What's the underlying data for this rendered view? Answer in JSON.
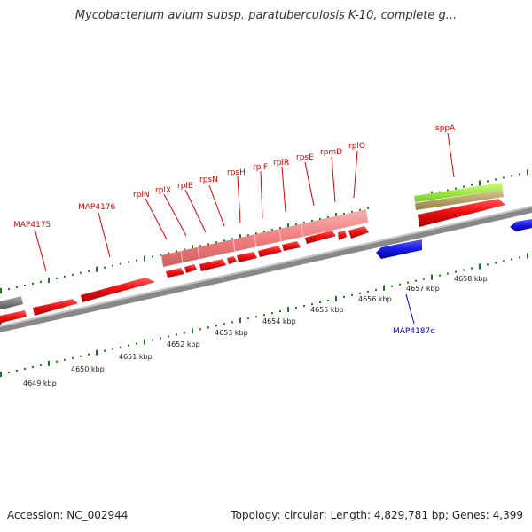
{
  "title": "Mycobacterium avium subsp. paratuberculosis K-10, complete g...",
  "footer": {
    "accession": "Accession: NC_002944",
    "summary": "Topology: circular; Length: 4,829,781 bp; Genes: 4,399"
  },
  "colors": {
    "gene_forward": "#ee1111",
    "gene_operon": "#f08080",
    "gene_reverse": "#1a1ae6",
    "gene_gray": "#808080",
    "feature_green": "#99ee33",
    "feature_olive": "#b3a15c",
    "backbone": "#888888",
    "tick": "#1a7a1a",
    "label_forward": "#dd0000",
    "label_reverse": "#0000cc"
  },
  "gene_labels": [
    {
      "id": "map4175",
      "text": "MAP4175"
    },
    {
      "id": "map4176",
      "text": "MAP4176"
    },
    {
      "id": "rpln",
      "text": "rplN"
    },
    {
      "id": "rplx",
      "text": "rplX"
    },
    {
      "id": "rple",
      "text": "rplE"
    },
    {
      "id": "rpsn",
      "text": "rpsN"
    },
    {
      "id": "rpsh",
      "text": "rpsH"
    },
    {
      "id": "rplf",
      "text": "rplF"
    },
    {
      "id": "rplr",
      "text": "rplR"
    },
    {
      "id": "rpse",
      "text": "rpsE"
    },
    {
      "id": "rpmd",
      "text": "rpmD"
    },
    {
      "id": "rplo",
      "text": "rplO"
    },
    {
      "id": "sppa",
      "text": "sppA"
    },
    {
      "id": "map4187c",
      "text": "MAP4187c"
    }
  ],
  "scale_labels": [
    "4649 kbp",
    "4650 kbp",
    "4651 kbp",
    "4652 kbp",
    "4653 kbp",
    "4654 kbp",
    "4655 kbp",
    "4656 kbp",
    "4657 kbp",
    "4658 kbp"
  ]
}
